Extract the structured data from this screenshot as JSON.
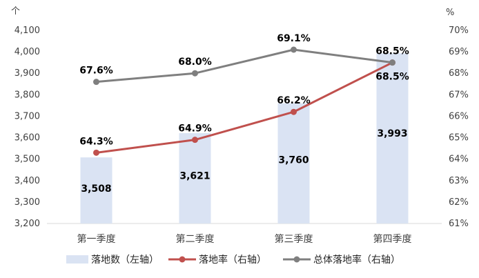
{
  "chart_data": {
    "type": "bar",
    "left_unit": "个",
    "right_unit": "%",
    "categories": [
      "第一季度",
      "第二季度",
      "第三季度",
      "第四季度"
    ],
    "series": [
      {
        "name": "落地数（左轴）",
        "type": "bar",
        "axis": "left",
        "color": "#dae3f3",
        "values": [
          3508,
          3621,
          3760,
          3993
        ],
        "labels": [
          "3,508",
          "3,621",
          "3,760",
          "3,993"
        ]
      },
      {
        "name": "落地率（右轴）",
        "type": "line",
        "axis": "right",
        "color": "#c0504d",
        "values": [
          64.3,
          64.9,
          66.2,
          68.5
        ],
        "labels": [
          "64.3%",
          "64.9%",
          "66.2%",
          "68.5%"
        ]
      },
      {
        "name": "总体落地率（右轴）",
        "type": "line",
        "axis": "right",
        "color": "#7f7f7f",
        "values": [
          67.6,
          68.0,
          69.1,
          68.5
        ],
        "labels": [
          "67.6%",
          "68.0%",
          "69.1%",
          "68.5%"
        ]
      }
    ],
    "left_axis": {
      "ylim": [
        3200,
        4100
      ],
      "ticks": [
        "3,200",
        "3,300",
        "3,400",
        "3,500",
        "3,600",
        "3,700",
        "3,800",
        "3,900",
        "4,000",
        "4,100"
      ]
    },
    "right_axis": {
      "ylim": [
        61,
        70
      ],
      "ticks": [
        "61%",
        "62%",
        "63%",
        "64%",
        "65%",
        "66%",
        "67%",
        "68%",
        "69%",
        "70%"
      ]
    },
    "grid": false,
    "legend_position": "bottom"
  }
}
